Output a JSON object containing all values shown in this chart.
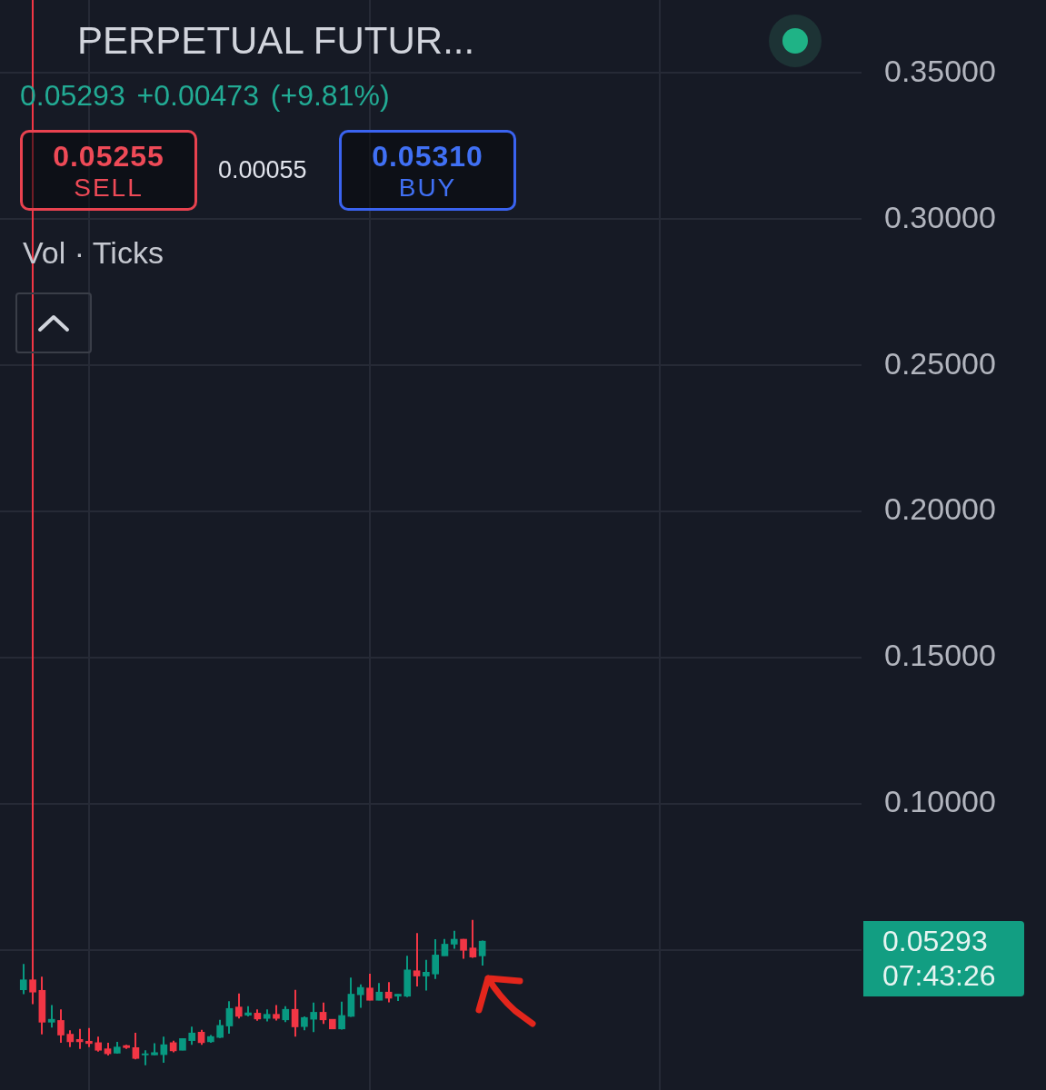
{
  "chart_data": {
    "type": "candlestick",
    "title": "PERPETUAL FUTUR...",
    "subtitle": "0.05293 +0.00473 (+9.81%)",
    "annotations": [
      "0.05255\nSELL",
      "0.00055",
      "0.05310\nBUY",
      "Vol · Ticks",
      "0.05293\n07:43:26"
    ],
    "categories": [
      null,
      null,
      null,
      null,
      null,
      null,
      null,
      null,
      null,
      null,
      null,
      null,
      null,
      null,
      null,
      null,
      null,
      null,
      null,
      null,
      null,
      null,
      null,
      null,
      null,
      null,
      null,
      null,
      null,
      null,
      null,
      null,
      null,
      null,
      null,
      null,
      null,
      null,
      null,
      null,
      null,
      null,
      null,
      null,
      null,
      null,
      null,
      null,
      null,
      null,
      null,
      null,
      null,
      null,
      null,
      null,
      null,
      null,
      null,
      null,
      null,
      null,
      null,
      null,
      null,
      null,
      null,
      null,
      null,
      null,
      null,
      null,
      null,
      null,
      null,
      null,
      null,
      null,
      null,
      null,
      null,
      null,
      null,
      null,
      null,
      null,
      null,
      null,
      null,
      null,
      null,
      null
    ],
    "ohlc": [
      null,
      null,
      [
        0.0363,
        0.0451,
        0.0348,
        0.0397
      ],
      [
        0.0397,
        0.375,
        0.0314,
        0.0355
      ],
      [
        0.0361,
        0.0408,
        0.021,
        0.0252
      ],
      [
        0.0252,
        0.0311,
        0.0234,
        0.0262
      ],
      [
        0.0258,
        0.0296,
        0.0182,
        0.0208
      ],
      [
        0.0211,
        0.0224,
        0.0167,
        0.0185
      ],
      [
        0.0193,
        0.0229,
        0.0161,
        0.0185
      ],
      [
        0.0187,
        0.0232,
        0.0167,
        0.0179
      ],
      [
        0.0182,
        0.0203,
        0.0151,
        0.0156
      ],
      [
        0.0161,
        0.0182,
        0.0138,
        0.0144
      ],
      [
        0.0146,
        0.0185,
        0.0144,
        0.0167
      ],
      [
        0.0172,
        0.0175,
        0.0161,
        0.0165
      ],
      [
        0.0165,
        0.0216,
        0.0125,
        0.0128
      ],
      [
        0.014,
        0.0156,
        0.0105,
        0.0144
      ],
      [
        0.014,
        0.018,
        0.0139,
        0.0148
      ],
      [
        0.0141,
        0.0203,
        0.0113,
        0.0175
      ],
      [
        0.0182,
        0.0189,
        0.0149,
        0.0154
      ],
      [
        0.0156,
        0.0196,
        0.0156,
        0.0196
      ],
      [
        0.0189,
        0.0237,
        0.0175,
        0.0215
      ],
      [
        0.0218,
        0.0226,
        0.0175,
        0.0182
      ],
      [
        0.0185,
        0.0208,
        0.0182,
        0.0203
      ],
      [
        0.02,
        0.026,
        0.0198,
        0.0241
      ],
      [
        0.0239,
        0.0324,
        0.0213,
        0.0299
      ],
      [
        0.0304,
        0.035,
        0.0265,
        0.0272
      ],
      [
        0.0276,
        0.0307,
        0.0272,
        0.0284
      ],
      [
        0.0283,
        0.0296,
        0.0257,
        0.0263
      ],
      [
        0.0265,
        0.0296,
        0.0255,
        0.0279
      ],
      [
        0.0279,
        0.0311,
        0.0258,
        0.0265
      ],
      [
        0.026,
        0.0307,
        0.0252,
        0.0296
      ],
      [
        0.0296,
        0.0363,
        0.0203,
        0.0236
      ],
      [
        0.0237,
        0.0272,
        0.0224,
        0.0268
      ],
      [
        0.0262,
        0.0319,
        0.0218,
        0.0286
      ],
      [
        0.0286,
        0.0319,
        0.0246,
        0.026
      ],
      [
        0.0262,
        0.0262,
        0.0229,
        0.0229
      ],
      [
        0.0229,
        0.0322,
        0.0227,
        0.0275
      ],
      [
        0.0272,
        0.0405,
        0.027,
        0.0348
      ],
      [
        0.0346,
        0.0381,
        0.0301,
        0.0371
      ],
      [
        0.0369,
        0.0418,
        0.0327,
        0.0327
      ],
      [
        0.0327,
        0.0386,
        0.0327,
        0.0355
      ],
      [
        0.0355,
        0.0389,
        0.032,
        0.0334
      ],
      [
        0.0341,
        0.0348,
        0.0325,
        0.0348
      ],
      [
        0.0341,
        0.0479,
        0.0338,
        0.0431
      ],
      [
        0.0428,
        0.0557,
        0.0374,
        0.041
      ],
      [
        0.041,
        0.0465,
        0.036,
        0.0423
      ],
      [
        0.0417,
        0.0536,
        0.04,
        0.0482
      ],
      [
        0.0479,
        0.0537,
        0.0479,
        0.0519
      ],
      [
        0.0519,
        0.0565,
        0.0503,
        0.0536
      ],
      [
        0.0536,
        0.0537,
        0.0469,
        0.0498
      ],
      [
        0.0506,
        0.0602,
        0.0472,
        0.0475
      ],
      [
        0.0479,
        0.0531,
        0.0446,
        0.05293
      ],
      null,
      null,
      null,
      null,
      null,
      null,
      null,
      null,
      null,
      null,
      null,
      null,
      null,
      null,
      null,
      null,
      null,
      null,
      null,
      null,
      null,
      null,
      null,
      null,
      null,
      null,
      null,
      null,
      null,
      null,
      null,
      null,
      null,
      null,
      null,
      null,
      null,
      null,
      null,
      null
    ],
    "colors": [
      null,
      null,
      "#089981",
      "#f23645",
      "#f23645",
      "#089981",
      "#f23645",
      "#f23645",
      "#f23645",
      "#f23645",
      "#f23645",
      "#f23645",
      "#089981",
      "#f23645",
      "#f23645",
      "#089981",
      "#089981",
      "#089981",
      "#f23645",
      "#089981",
      "#089981",
      "#f23645",
      "#089981",
      "#089981",
      "#089981",
      "#f23645",
      "#089981",
      "#f23645",
      "#089981",
      "#f23645",
      "#089981",
      "#f23645",
      "#089981",
      "#089981",
      "#f23645",
      "#f23645",
      "#089981",
      "#089981",
      "#089981",
      "#f23645",
      "#089981",
      "#f23645",
      "#089981",
      "#089981",
      "#f23645",
      "#089981",
      "#089981",
      "#089981",
      "#089981",
      "#f23645",
      "#f23645",
      "#089981",
      null,
      null,
      null,
      null,
      null,
      null,
      null,
      null,
      null,
      null,
      null,
      null,
      null,
      null,
      null,
      null,
      null,
      null,
      null,
      null,
      null,
      null,
      null,
      null,
      null,
      null,
      null,
      null,
      null,
      null,
      null,
      null,
      null,
      null,
      null,
      null,
      null,
      null,
      null,
      null
    ],
    "ylim": [
      0.002,
      0.375
    ],
    "yticks": [
      {
        "value": 0.05,
        "label": null
      },
      {
        "value": 0.1,
        "label": "0.10000"
      },
      {
        "value": 0.15,
        "label": "0.15000"
      },
      {
        "value": 0.2,
        "label": "0.20000"
      },
      {
        "value": 0.25,
        "label": "0.25000"
      },
      {
        "value": 0.3,
        "label": "0.30000"
      },
      {
        "value": 0.35,
        "label": "0.35000"
      }
    ],
    "grid": true,
    "tick_labels": "y"
  }
}
